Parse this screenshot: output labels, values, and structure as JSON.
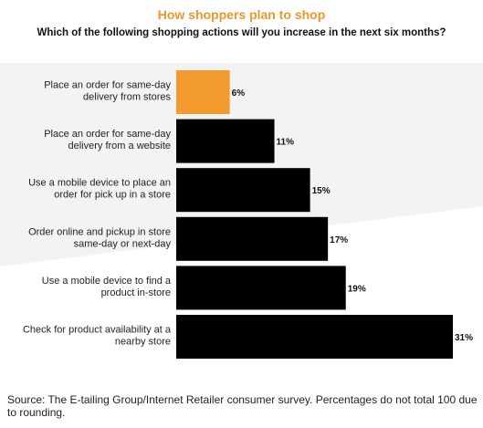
{
  "chart_data": {
    "type": "bar",
    "orientation": "horizontal",
    "title": "How shoppers plan to shop",
    "subtitle": "Which of the following shopping actions will you increase in the next six months?",
    "categories": [
      "Place an order for same-day delivery from stores",
      "Place an order for same-day delivery from a website",
      "Use a mobile device to place an order for pick up in a store",
      "Order online and pickup in store same-day or next-day",
      "Use a mobile device to find a product in-store",
      "Check for product availability at a nearby store"
    ],
    "category_lines": [
      [
        "Place an order for same-day",
        "delivery from stores"
      ],
      [
        "Place an order for same-day",
        "delivery from a website"
      ],
      [
        "Use a mobile device to place an",
        "order for pick up in a store"
      ],
      [
        "Order online and pickup in store",
        "same-day or next-day"
      ],
      [
        "Use a mobile device to find a",
        "product in-store"
      ],
      [
        "Check for product availability at a",
        "nearby store"
      ]
    ],
    "values": [
      6,
      11,
      15,
      17,
      19,
      31
    ],
    "value_labels": [
      "6%",
      "11%",
      "15%",
      "17%",
      "19%",
      "31%"
    ],
    "bar_colors": [
      "#f29a2e",
      "#000000",
      "#000000",
      "#000000",
      "#000000",
      "#000000"
    ],
    "xlim": [
      0,
      31
    ],
    "grid": false,
    "legend": "none"
  },
  "colors": {
    "title": "#f0952a",
    "highlight": "#f29a2e",
    "bar": "#000000",
    "background_shape": "#f3f3f3"
  },
  "source": "Source: The E-tailing Group/Internet Retailer consumer survey. Percentages do not total 100 due to rounding."
}
